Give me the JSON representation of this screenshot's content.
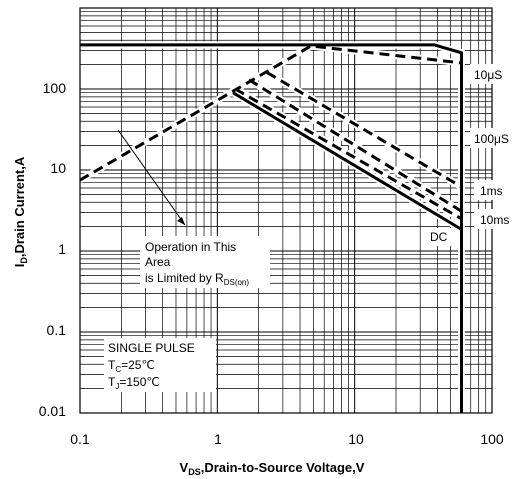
{
  "chart_data": {
    "type": "line",
    "xscale": "log",
    "yscale": "log",
    "xlim": [
      0.1,
      100
    ],
    "ylim": [
      0.01,
      1000
    ],
    "grid": true,
    "x_ticks": [
      "0.1",
      "1",
      "10",
      "100"
    ],
    "y_ticks": [
      "0.01",
      "0.1",
      "1",
      "10",
      "100"
    ],
    "xlabel": {
      "pre": "V",
      "sub": "DS",
      "post": ",Drain-to-Source  Voltage,V"
    },
    "ylabel": {
      "pre": "I",
      "sub": "D",
      "post": ",Drain Current,A"
    },
    "series": [
      {
        "name": "10μS",
        "style": "dashed",
        "x": [
          0.1,
          4.8,
          60,
          60
        ],
        "y": [
          7.5,
          340,
          210,
          28
        ]
      },
      {
        "name": "100μS",
        "style": "dashed",
        "x": [
          2.3,
          60
        ],
        "y": [
          160,
          6.2
        ]
      },
      {
        "name": "1ms",
        "style": "dashed",
        "x": [
          1.7,
          60
        ],
        "y": [
          130,
          3.1
        ]
      },
      {
        "name": "10ms",
        "style": "dashed",
        "x": [
          1.35,
          60
        ],
        "y": [
          100,
          2.5
        ]
      },
      {
        "name": "DC",
        "style": "solid",
        "x": [
          1.3,
          60
        ],
        "y": [
          90,
          1.85
        ]
      },
      {
        "name": "",
        "style": "solid",
        "x": [
          0.1,
          38,
          60,
          60
        ],
        "y": [
          350,
          350,
          280,
          0.01
        ]
      }
    ],
    "series_labels": [
      "10μS",
      "100μS",
      "1ms",
      "10ms",
      "DC"
    ],
    "annotations": {
      "operation_line1": "Operation in This",
      "operation_line2": "Area",
      "operation_line3_pre": "is Limited by R",
      "operation_line3_sub": "DS(on)",
      "pulse_line1": "SINGLE PULSE",
      "pulse_line2_pre": "T",
      "pulse_line2_sub": "C",
      "pulse_line2_post": "=25℃",
      "pulse_line3_pre": "T",
      "pulse_line3_sub": "J",
      "pulse_line3_post": "=150℃"
    }
  }
}
